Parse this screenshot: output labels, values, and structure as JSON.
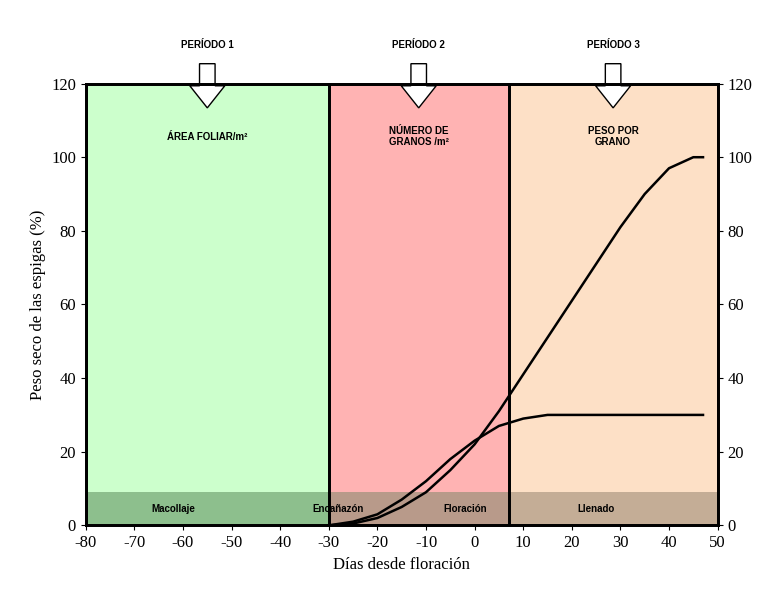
{
  "chart_data": {
    "type": "line",
    "xlabel": "Días desde floración",
    "ylabel": "Peso seco de las espigas (%)",
    "xlim": [
      -80,
      50
    ],
    "xticks": [
      -80,
      -70,
      -60,
      -50,
      -40,
      -30,
      -20,
      -10,
      0,
      10,
      20,
      30,
      40,
      50
    ],
    "ylim": [
      0,
      120
    ],
    "yticks": [
      0,
      20,
      40,
      60,
      80,
      100,
      120
    ],
    "y2lim": [
      0,
      120
    ],
    "y2ticks": [
      0,
      20,
      40,
      60,
      80,
      100,
      120
    ],
    "grid": false,
    "x": [
      -30,
      -25,
      -20,
      -15,
      -10,
      -5,
      0,
      5,
      10,
      15,
      20,
      25,
      30,
      35,
      40,
      45,
      47
    ],
    "series": [
      {
        "color": "#000000",
        "values": [
          0,
          0.5,
          2,
          5,
          9,
          15,
          22,
          31,
          41,
          51,
          61,
          71,
          81,
          90,
          97,
          100,
          100
        ]
      },
      {
        "color": "#000000",
        "values": [
          0,
          1,
          3,
          7,
          12,
          18,
          23,
          27,
          29,
          30,
          30,
          30,
          30,
          30,
          30,
          30,
          30
        ]
      }
    ],
    "periods": [
      {
        "label": "PERÍODO 1",
        "name": "ÁREA FOLIAR/m²",
        "start": -80,
        "end": -30,
        "color": "#ccffcc",
        "ground_color": "#8dbf8d"
      },
      {
        "label": "PERÍODO 2",
        "name": "NÚMERO DE\nGRANOS /m²",
        "start": -30,
        "end": 7,
        "color": "#ffb3b3",
        "ground_color": "#b89a8a"
      },
      {
        "label": "PERÍODO 3",
        "name": "PESO POR\nGRANO",
        "start": 7,
        "end": 50,
        "color": "#fde0c6",
        "ground_color": "#c4ad96"
      }
    ],
    "stages": [
      {
        "text": "Macollaje",
        "x": -62
      },
      {
        "text": "Encañazón",
        "x": -28
      },
      {
        "text": "Floración",
        "x": -2
      },
      {
        "text": "Llenado",
        "x": 25
      }
    ]
  }
}
